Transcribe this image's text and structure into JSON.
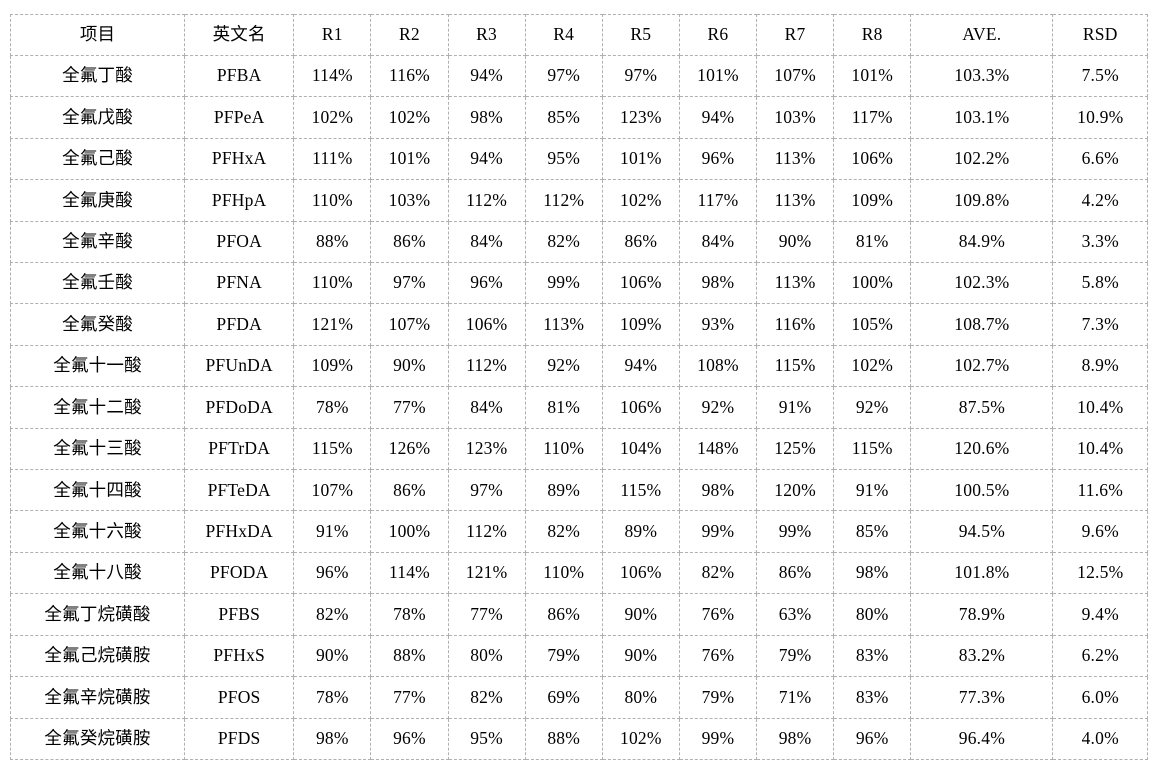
{
  "colors": {
    "border": "#b0b0b0",
    "text": "#000000",
    "background": "#ffffff"
  },
  "table": {
    "columns": [
      {
        "key": "item",
        "label": "项目"
      },
      {
        "key": "name",
        "label": "英文名"
      },
      {
        "key": "r1",
        "label": "R1"
      },
      {
        "key": "r2",
        "label": "R2"
      },
      {
        "key": "r3",
        "label": "R3"
      },
      {
        "key": "r4",
        "label": "R4"
      },
      {
        "key": "r5",
        "label": "R5"
      },
      {
        "key": "r6",
        "label": "R6"
      },
      {
        "key": "r7",
        "label": "R7"
      },
      {
        "key": "r8",
        "label": "R8"
      },
      {
        "key": "ave",
        "label": "AVE."
      },
      {
        "key": "rsd",
        "label": "RSD"
      }
    ],
    "rows": [
      [
        "全氟丁酸",
        "PFBA",
        "114%",
        "116%",
        "94%",
        "97%",
        "97%",
        "101%",
        "107%",
        "101%",
        "103.3%",
        "7.5%"
      ],
      [
        "全氟戊酸",
        "PFPeA",
        "102%",
        "102%",
        "98%",
        "85%",
        "123%",
        "94%",
        "103%",
        "117%",
        "103.1%",
        "10.9%"
      ],
      [
        "全氟己酸",
        "PFHxA",
        "111%",
        "101%",
        "94%",
        "95%",
        "101%",
        "96%",
        "113%",
        "106%",
        "102.2%",
        "6.6%"
      ],
      [
        "全氟庚酸",
        "PFHpA",
        "110%",
        "103%",
        "112%",
        "112%",
        "102%",
        "117%",
        "113%",
        "109%",
        "109.8%",
        "4.2%"
      ],
      [
        "全氟辛酸",
        "PFOA",
        "88%",
        "86%",
        "84%",
        "82%",
        "86%",
        "84%",
        "90%",
        "81%",
        "84.9%",
        "3.3%"
      ],
      [
        "全氟壬酸",
        "PFNA",
        "110%",
        "97%",
        "96%",
        "99%",
        "106%",
        "98%",
        "113%",
        "100%",
        "102.3%",
        "5.8%"
      ],
      [
        "全氟癸酸",
        "PFDA",
        "121%",
        "107%",
        "106%",
        "113%",
        "109%",
        "93%",
        "116%",
        "105%",
        "108.7%",
        "7.3%"
      ],
      [
        "全氟十一酸",
        "PFUnDA",
        "109%",
        "90%",
        "112%",
        "92%",
        "94%",
        "108%",
        "115%",
        "102%",
        "102.7%",
        "8.9%"
      ],
      [
        "全氟十二酸",
        "PFDoDA",
        "78%",
        "77%",
        "84%",
        "81%",
        "106%",
        "92%",
        "91%",
        "92%",
        "87.5%",
        "10.4%"
      ],
      [
        "全氟十三酸",
        "PFTrDA",
        "115%",
        "126%",
        "123%",
        "110%",
        "104%",
        "148%",
        "125%",
        "115%",
        "120.6%",
        "10.4%"
      ],
      [
        "全氟十四酸",
        "PFTeDA",
        "107%",
        "86%",
        "97%",
        "89%",
        "115%",
        "98%",
        "120%",
        "91%",
        "100.5%",
        "11.6%"
      ],
      [
        "全氟十六酸",
        "PFHxDA",
        "91%",
        "100%",
        "112%",
        "82%",
        "89%",
        "99%",
        "99%",
        "85%",
        "94.5%",
        "9.6%"
      ],
      [
        "全氟十八酸",
        "PFODA",
        "96%",
        "114%",
        "121%",
        "110%",
        "106%",
        "82%",
        "86%",
        "98%",
        "101.8%",
        "12.5%"
      ],
      [
        "全氟丁烷磺酸",
        "PFBS",
        "82%",
        "78%",
        "77%",
        "86%",
        "90%",
        "76%",
        "63%",
        "80%",
        "78.9%",
        "9.4%"
      ],
      [
        "全氟己烷磺胺",
        "PFHxS",
        "90%",
        "88%",
        "80%",
        "79%",
        "90%",
        "76%",
        "79%",
        "83%",
        "83.2%",
        "6.2%"
      ],
      [
        "全氟辛烷磺胺",
        "PFOS",
        "78%",
        "77%",
        "82%",
        "69%",
        "80%",
        "79%",
        "71%",
        "83%",
        "77.3%",
        "6.0%"
      ],
      [
        "全氟癸烷磺胺",
        "PFDS",
        "98%",
        "96%",
        "95%",
        "88%",
        "102%",
        "99%",
        "98%",
        "96%",
        "96.4%",
        "4.0%"
      ]
    ]
  }
}
